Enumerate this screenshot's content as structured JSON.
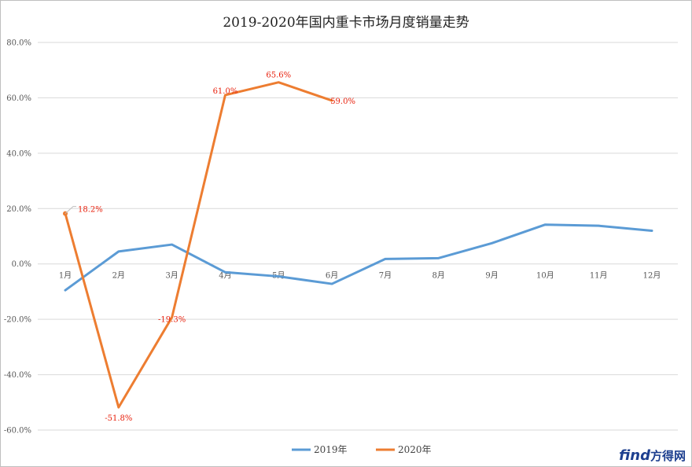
{
  "chart_data": {
    "type": "line",
    "title": "2019-2020年国内重卡市场月度销量走势",
    "categories": [
      "1月",
      "2月",
      "3月",
      "4月",
      "5月",
      "6月",
      "7月",
      "8月",
      "9月",
      "10月",
      "11月",
      "12月"
    ],
    "yticks": [
      "80.0%",
      "60.0%",
      "40.0%",
      "20.0%",
      "0.0%",
      "-20.0%",
      "-40.0%",
      "-60.0%"
    ],
    "ylim": [
      -65,
      80
    ],
    "grid": true,
    "legend": "bottom",
    "series": [
      {
        "name": "2019年",
        "color": "#5b9bd5",
        "values": [
          -9.5,
          4.5,
          7.0,
          -3.0,
          -4.5,
          -7.2,
          1.8,
          2.1,
          7.5,
          14.2,
          13.8,
          12.0
        ]
      },
      {
        "name": "2020年",
        "color": "#ed7d31",
        "values": [
          18.2,
          -51.8,
          -19.3,
          61.0,
          65.6,
          59.0,
          null,
          null,
          null,
          null,
          null,
          null
        ],
        "labels": [
          "18.2%",
          "-51.8%",
          "-19.3%",
          "61.0%",
          "65.6%",
          "59.0%"
        ]
      }
    ]
  },
  "watermark": {
    "logo_text": "find",
    "logo_cn": "方得网"
  }
}
